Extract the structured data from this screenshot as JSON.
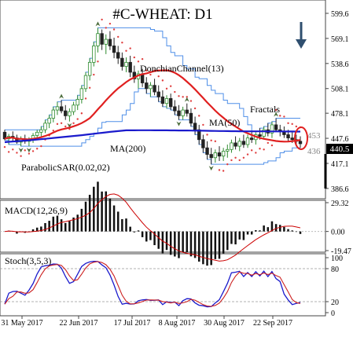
{
  "chart_data": {
    "type": "candlestick",
    "title": "#C-WHEAT: D1",
    "signal": "down",
    "price_axis": {
      "ticks": [
        599.6,
        569.1,
        538.6,
        508.1,
        478.1,
        447.6,
        417.1,
        386.6
      ],
      "ylim": [
        376,
        612
      ],
      "current_price_label": "440.5",
      "level_labels": [
        "453",
        "436"
      ]
    },
    "x_ticks": [
      "31 May 2017",
      "22 Jun 2017",
      "17 Jul 2017",
      "8 Aug 2017",
      "30 Aug 2017",
      "22 Sep 2017"
    ],
    "indicator_labels": {
      "donchian": "DonchianChannel(13)",
      "ma50": "MA(50)",
      "ma200": "MA(200)",
      "fractals": "Fractals",
      "psar": "ParabolicSAR(0.02,02)"
    },
    "macd": {
      "label": "MACD(12,26,9)",
      "ticks": [
        29.32,
        0.0,
        -19.47
      ],
      "ylim": [
        -19.47,
        29.32
      ]
    },
    "stoch": {
      "label": "Stoch(3,5,3)",
      "ticks": [
        100,
        80,
        20,
        0
      ],
      "ylim": [
        0,
        100
      ]
    },
    "colors": {
      "bull": "#2e8b2e",
      "bear": "#222222",
      "ma50": "#e02020",
      "ma200": "#1a1acc",
      "donchian": "#4f8fe8",
      "psar": "#e04040",
      "macd_hist": "#111111",
      "macd_signal": "#cc0000",
      "stoch_k": "#1a1acc",
      "stoch_d": "#cc2020",
      "marker": "#e02020",
      "arrow": "#2f4f6f",
      "price_box": "#000000"
    },
    "candles": [
      [
        455,
        458,
        445,
        447
      ],
      [
        447,
        453,
        440,
        450
      ],
      [
        450,
        456,
        444,
        448
      ],
      [
        448,
        452,
        441,
        443
      ],
      [
        443,
        450,
        438,
        447
      ],
      [
        447,
        452,
        441,
        444
      ],
      [
        444,
        449,
        438,
        446
      ],
      [
        446,
        454,
        442,
        451
      ],
      [
        451,
        458,
        446,
        455
      ],
      [
        455,
        462,
        450,
        458
      ],
      [
        458,
        470,
        454,
        466
      ],
      [
        466,
        476,
        460,
        472
      ],
      [
        472,
        486,
        467,
        482
      ],
      [
        482,
        492,
        476,
        486
      ],
      [
        486,
        494,
        478,
        481
      ],
      [
        481,
        488,
        470,
        475
      ],
      [
        475,
        484,
        468,
        480
      ],
      [
        480,
        492,
        476,
        488
      ],
      [
        488,
        500,
        482,
        495
      ],
      [
        495,
        512,
        490,
        508
      ],
      [
        508,
        528,
        504,
        524
      ],
      [
        524,
        545,
        518,
        540
      ],
      [
        540,
        565,
        535,
        560
      ],
      [
        560,
        582,
        552,
        575
      ],
      [
        575,
        580,
        555,
        562
      ],
      [
        562,
        574,
        550,
        568
      ],
      [
        568,
        578,
        555,
        560
      ],
      [
        560,
        570,
        545,
        552
      ],
      [
        552,
        560,
        538,
        545
      ],
      [
        545,
        552,
        530,
        535
      ],
      [
        535,
        546,
        528,
        540
      ],
      [
        540,
        548,
        522,
        528
      ],
      [
        528,
        536,
        515,
        520
      ],
      [
        520,
        530,
        508,
        526
      ],
      [
        526,
        532,
        510,
        515
      ],
      [
        515,
        522,
        502,
        508
      ],
      [
        508,
        516,
        498,
        512
      ],
      [
        512,
        520,
        500,
        504
      ],
      [
        504,
        512,
        492,
        498
      ],
      [
        498,
        506,
        486,
        490
      ],
      [
        490,
        500,
        484,
        496
      ],
      [
        496,
        502,
        482,
        486
      ],
      [
        486,
        494,
        476,
        481
      ],
      [
        481,
        488,
        470,
        475
      ],
      [
        475,
        486,
        470,
        482
      ],
      [
        482,
        490,
        474,
        478
      ],
      [
        478,
        484,
        462,
        466
      ],
      [
        466,
        474,
        452,
        458
      ],
      [
        458,
        464,
        440,
        446
      ],
      [
        446,
        452,
        430,
        436
      ],
      [
        436,
        444,
        422,
        428
      ],
      [
        428,
        436,
        416,
        424
      ],
      [
        424,
        434,
        418,
        430
      ],
      [
        430,
        438,
        420,
        426
      ],
      [
        426,
        436,
        420,
        432
      ],
      [
        432,
        440,
        424,
        434
      ],
      [
        434,
        446,
        430,
        442
      ],
      [
        442,
        450,
        434,
        438
      ],
      [
        438,
        448,
        432,
        444
      ],
      [
        444,
        452,
        436,
        440
      ],
      [
        440,
        452,
        436,
        448
      ],
      [
        448,
        456,
        442,
        446
      ],
      [
        446,
        455,
        440,
        452
      ],
      [
        452,
        460,
        446,
        450
      ],
      [
        450,
        462,
        446,
        458
      ],
      [
        458,
        466,
        450,
        454
      ],
      [
        454,
        468,
        448,
        464
      ],
      [
        464,
        472,
        456,
        458
      ],
      [
        458,
        464,
        450,
        456
      ],
      [
        456,
        462,
        448,
        452
      ],
      [
        452,
        458,
        444,
        448
      ],
      [
        448,
        456,
        442,
        446
      ],
      [
        446,
        452,
        438,
        444
      ],
      [
        444,
        450,
        436,
        441
      ]
    ]
  }
}
